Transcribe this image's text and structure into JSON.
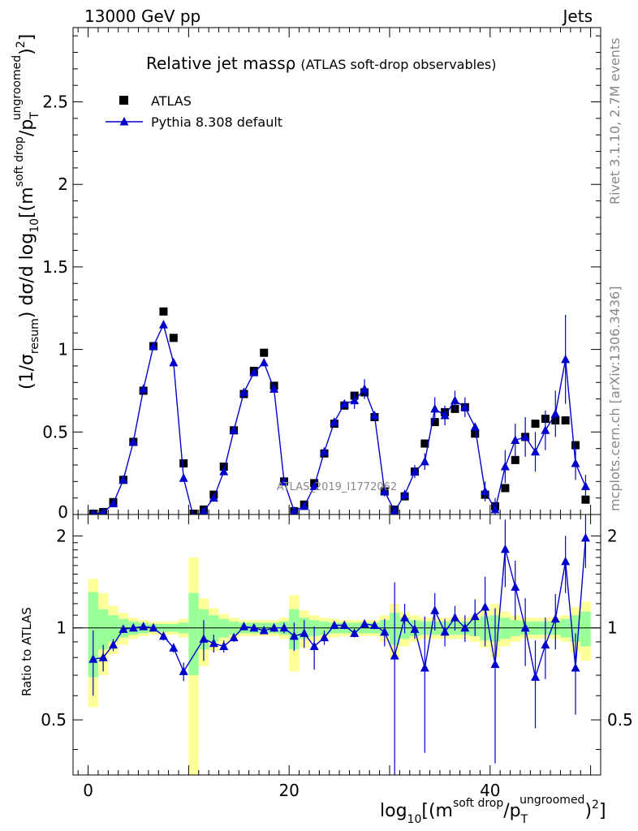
{
  "header": {
    "energy_label": "13000 GeV pp",
    "category_label": "Jets"
  },
  "side_labels": {
    "rivet": "Rivet 3.1.10,  2.7M events",
    "mcplots": "mcplots.cern.ch [arXiv:1306.3436]"
  },
  "watermark": "ATLAS_2019_I1772062",
  "chart_data": {
    "type": "scatter",
    "title": "Relative jet mass",
    "title_symbol": "ρ",
    "subtitle": "(ATLAS soft-drop observables)",
    "xlabel": "log10[(m soft drop/pT ungroomed)2]",
    "ylabel": "(1/σ resum) dσ/d log10[(m soft drop/pT ungroomed)2]",
    "ratio_ylabel": "Ratio to ATLAS",
    "xlim": [
      -1.5,
      51
    ],
    "ylim": [
      0,
      2.95
    ],
    "ratio_ylim": [
      0.33,
      2.35
    ],
    "x_ticks": [
      0,
      20,
      40
    ],
    "y_ticks": [
      0.5,
      1,
      1.5,
      2,
      2.5
    ],
    "y_tick_labels": [
      "0.5",
      "1",
      "1.5",
      "2",
      "2.5"
    ],
    "y_zero_label": "0",
    "ratio_ticks": [
      0.5,
      1,
      2
    ],
    "ratio_tick_labels": [
      "0.5",
      "1",
      "2"
    ],
    "legend_position": "top-left",
    "series": [
      {
        "name": "ATLAS",
        "marker": "square",
        "color": "#000000",
        "x": [
          0.5,
          1.5,
          2.5,
          3.5,
          4.5,
          5.5,
          6.5,
          7.5,
          8.5,
          9.5,
          10.5,
          11.5,
          12.5,
          13.5,
          14.5,
          15.5,
          16.5,
          17.5,
          18.5,
          19.5,
          20.5,
          21.5,
          22.5,
          23.5,
          24.5,
          25.5,
          26.5,
          27.5,
          28.5,
          29.5,
          30.5,
          31.5,
          32.5,
          33.5,
          34.5,
          35.5,
          36.5,
          37.5,
          38.5,
          39.5,
          40.5,
          41.5,
          42.5,
          43.5,
          44.5,
          45.5,
          46.5,
          47.5,
          48.5,
          49.5
        ],
        "y": [
          0.005,
          0.015,
          0.075,
          0.21,
          0.44,
          0.75,
          1.02,
          1.23,
          1.07,
          0.31,
          0.005,
          0.03,
          0.12,
          0.29,
          0.51,
          0.73,
          0.87,
          0.98,
          0.78,
          0.2,
          0.02,
          0.06,
          0.19,
          0.37,
          0.55,
          0.66,
          0.72,
          0.74,
          0.59,
          0.14,
          0.03,
          0.11,
          0.26,
          0.43,
          0.56,
          0.62,
          0.64,
          0.65,
          0.49,
          0.12,
          0.05,
          0.16,
          0.33,
          0.47,
          0.55,
          0.58,
          0.57,
          0.57,
          0.42,
          0.09
        ]
      },
      {
        "name": "Pythia 8.308 default",
        "marker": "triangle",
        "color": "#0000cc",
        "x": [
          0.5,
          1.5,
          2.5,
          3.5,
          4.5,
          5.5,
          6.5,
          7.5,
          8.5,
          9.5,
          10.5,
          11.5,
          12.5,
          13.5,
          14.5,
          15.5,
          16.5,
          17.5,
          18.5,
          19.5,
          20.5,
          21.5,
          22.5,
          23.5,
          24.5,
          25.5,
          26.5,
          27.5,
          28.5,
          29.5,
          30.5,
          31.5,
          32.5,
          33.5,
          34.5,
          35.5,
          36.5,
          37.5,
          38.5,
          39.5,
          40.5,
          41.5,
          42.5,
          43.5,
          44.5,
          45.5,
          46.5,
          47.5,
          48.5,
          49.5
        ],
        "y": [
          0.004,
          0.012,
          0.066,
          0.21,
          0.44,
          0.76,
          1.02,
          1.15,
          0.92,
          0.22,
          -0.02,
          0.02,
          0.1,
          0.26,
          0.51,
          0.74,
          0.86,
          0.92,
          0.76,
          0.2,
          0.02,
          0.05,
          0.17,
          0.38,
          0.56,
          0.67,
          0.69,
          0.76,
          0.6,
          0.14,
          0.02,
          0.12,
          0.26,
          0.32,
          0.64,
          0.6,
          0.69,
          0.65,
          0.53,
          0.14,
          0.03,
          0.29,
          0.45,
          0.47,
          0.38,
          0.51,
          0.61,
          0.94,
          0.31,
          0.17
        ],
        "yerr": [
          0,
          0,
          0,
          0,
          0,
          0,
          0,
          0,
          0,
          0,
          0,
          0,
          0,
          0,
          0,
          0,
          0,
          0,
          0,
          0,
          0,
          0,
          0,
          0,
          0,
          0,
          0.05,
          0.06,
          0,
          0.03,
          0.03,
          0.03,
          0.04,
          0.05,
          0.07,
          0.06,
          0.06,
          0.06,
          0,
          0.06,
          0.07,
          0.1,
          0.1,
          0.12,
          0.12,
          0.12,
          0.14,
          0.27,
          0.1,
          0.07
        ],
        "ratio": [
          0.79,
          0.8,
          0.88,
          0.99,
          1.0,
          1.01,
          1.0,
          0.94,
          0.86,
          0.72,
          null,
          0.92,
          0.89,
          0.87,
          0.93,
          1.01,
          1.0,
          0.98,
          1.0,
          1.0,
          0.94,
          0.96,
          0.87,
          0.93,
          1.02,
          1.02,
          0.96,
          1.03,
          1.02,
          0.97,
          0.81,
          1.08,
          0.99,
          0.74,
          1.14,
          0.97,
          1.08,
          1.0,
          1.09,
          1.17,
          0.76,
          1.81,
          1.36,
          1.0,
          0.69,
          0.88,
          1.07,
          1.65,
          0.74,
          1.97
        ],
        "ratio_err": [
          0.19,
          0.08,
          0.04,
          0.02,
          0.02,
          0.02,
          0.02,
          0.03,
          0.03,
          0.05,
          null,
          0.14,
          0.06,
          0.04,
          0.03,
          0.02,
          0.02,
          0.02,
          0.03,
          0.04,
          0.1,
          0.1,
          0.14,
          0.05,
          0.03,
          0.03,
          0.03,
          0.03,
          0.03,
          0.1,
          0.6,
          0.12,
          0.07,
          0.35,
          0.16,
          0.1,
          0.1,
          0.1,
          0.15,
          0.3,
          0.4,
          0.45,
          0.3,
          0.25,
          0.22,
          0.2,
          0.22,
          0.35,
          0.22,
          0.4
        ]
      }
    ],
    "uncertainty_bands": {
      "inner_color": "#99ff99",
      "outer_color": "#ffff99",
      "x_edges": [
        0,
        1,
        2,
        3,
        4,
        5,
        6,
        7,
        8,
        9,
        10,
        11,
        12,
        13,
        14,
        15,
        16,
        17,
        18,
        19,
        20,
        21,
        22,
        23,
        24,
        25,
        26,
        27,
        28,
        29,
        30,
        31,
        32,
        33,
        34,
        35,
        36,
        37,
        38,
        39,
        40,
        41,
        42,
        43,
        44,
        45,
        46,
        47,
        48,
        49,
        50
      ],
      "inner_halfwidth": [
        0.31,
        0.15,
        0.1,
        0.07,
        0.05,
        0.04,
        0.03,
        0.03,
        0.03,
        0.04,
        0.3,
        0.15,
        0.1,
        0.07,
        0.05,
        0.04,
        0.04,
        0.04,
        0.04,
        0.05,
        0.15,
        0.08,
        0.06,
        0.05,
        0.04,
        0.04,
        0.04,
        0.04,
        0.04,
        0.06,
        0.12,
        0.08,
        0.06,
        0.05,
        0.05,
        0.05,
        0.05,
        0.05,
        0.06,
        0.09,
        0.1,
        0.08,
        0.06,
        0.05,
        0.05,
        0.05,
        0.05,
        0.07,
        0.1,
        0.13
      ],
      "outer_halfwidth": [
        0.45,
        0.3,
        0.18,
        0.12,
        0.08,
        0.06,
        0.05,
        0.05,
        0.05,
        0.07,
        0.7,
        0.25,
        0.16,
        0.11,
        0.08,
        0.06,
        0.06,
        0.06,
        0.06,
        0.08,
        0.28,
        0.14,
        0.1,
        0.08,
        0.07,
        0.06,
        0.06,
        0.06,
        0.06,
        0.1,
        0.2,
        0.13,
        0.1,
        0.08,
        0.08,
        0.08,
        0.08,
        0.08,
        0.1,
        0.14,
        0.2,
        0.13,
        0.1,
        0.08,
        0.08,
        0.08,
        0.08,
        0.1,
        0.17,
        0.22
      ]
    }
  }
}
